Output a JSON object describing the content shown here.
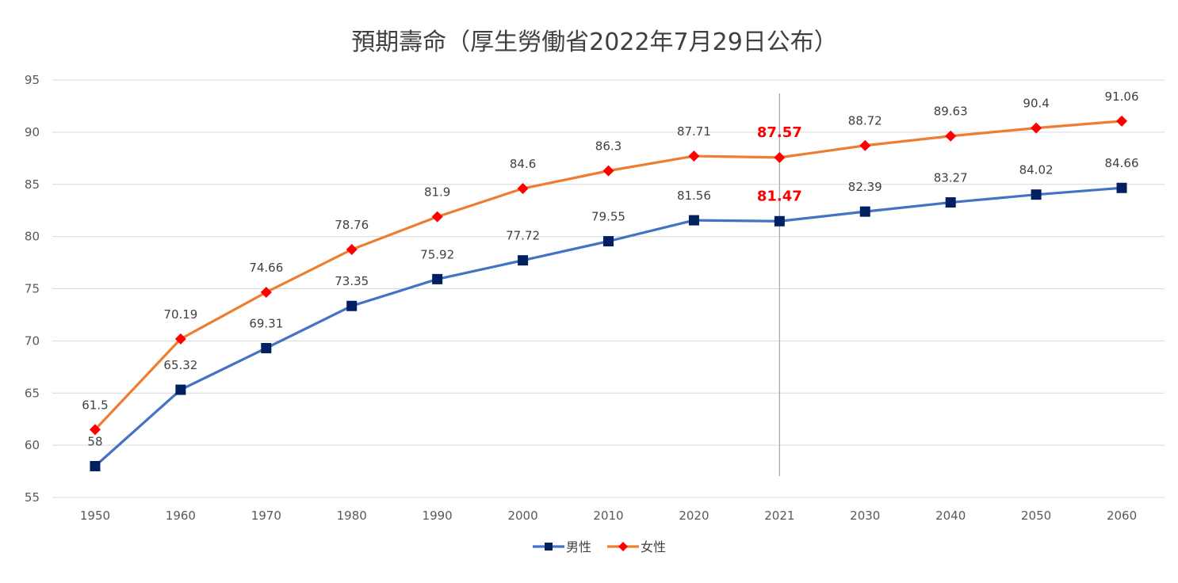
{
  "chart_data": {
    "type": "line",
    "title": "預期壽命（厚生勞働省2022年7月29日公布）",
    "categories": [
      "1950",
      "1960",
      "1970",
      "1980",
      "1990",
      "2000",
      "2010",
      "2020",
      "2021",
      "2030",
      "2040",
      "2050",
      "2060"
    ],
    "ylim": [
      55,
      95
    ],
    "yticks": [
      55,
      60,
      65,
      70,
      75,
      80,
      85,
      90,
      95
    ],
    "grid": true,
    "legend_position": "bottom",
    "highlight_category": "2021",
    "series": [
      {
        "name": "男性",
        "color": "#4472c4",
        "marker": "square",
        "marker_color": "#002060",
        "values": [
          58,
          65.32,
          69.31,
          73.35,
          75.92,
          77.72,
          79.55,
          81.56,
          81.47,
          82.39,
          83.27,
          84.02,
          84.66
        ],
        "labels": [
          "58",
          "65.32",
          "69.31",
          "73.35",
          "75.92",
          "77.72",
          "79.55",
          "81.56",
          "81.47",
          "82.39",
          "83.27",
          "84.02",
          "84.66"
        ]
      },
      {
        "name": "女性",
        "color": "#ed7d31",
        "marker": "diamond",
        "marker_color": "#ff0000",
        "values": [
          61.5,
          70.19,
          74.66,
          78.76,
          81.9,
          84.6,
          86.3,
          87.71,
          87.57,
          88.72,
          89.63,
          90.4,
          91.06
        ],
        "labels": [
          "61.5",
          "70.19",
          "74.66",
          "78.76",
          "81.9",
          "84.6",
          "86.3",
          "87.71",
          "87.57",
          "88.72",
          "89.63",
          "90.4",
          "91.06"
        ]
      }
    ]
  }
}
